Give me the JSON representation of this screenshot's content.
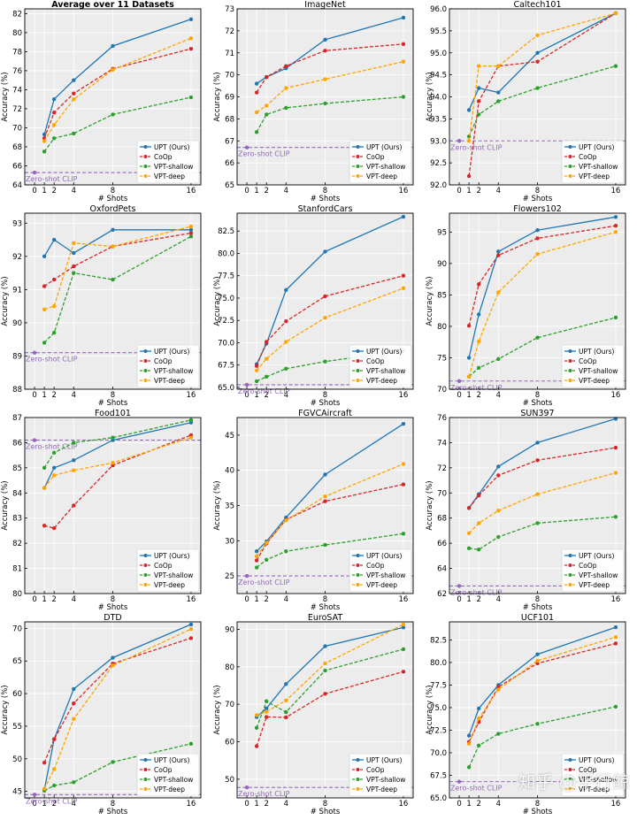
{
  "legend_labels": [
    "UPT (Ours)",
    "CoOp",
    "VPT-shallow",
    "VPT-deep"
  ],
  "series_colors": {
    "UPT (Ours)": "#1f77b4",
    "CoOp": "#d62728",
    "VPT-shallow": "#2ca02c",
    "VPT-deep": "#ffa500"
  },
  "zero_shot_color": "#9467bd",
  "watermark": "知乎 @平行鲸",
  "chart_data": [
    {
      "type": "line",
      "title": "Average over 11 Datasets",
      "xlabel": "# Shots",
      "ylabel": "Accuracy (%)",
      "x": [
        1,
        2,
        4,
        8,
        16
      ],
      "xticks": [
        0,
        1,
        2,
        4,
        8,
        16
      ],
      "ylim": [
        64,
        82.5
      ],
      "yticks": [
        "64",
        "66",
        "68",
        "70",
        "72",
        "74",
        "76",
        "78",
        "80",
        "82"
      ],
      "zero_shot": {
        "label": "Zero-shot CLIP",
        "value": 65.3
      },
      "series": [
        {
          "name": "UPT (Ours)",
          "values": [
            69.3,
            73.0,
            75.0,
            78.6,
            81.4
          ]
        },
        {
          "name": "CoOp",
          "values": [
            68.9,
            71.6,
            73.6,
            76.2,
            78.3
          ]
        },
        {
          "name": "VPT-shallow",
          "values": [
            67.5,
            68.9,
            69.4,
            71.4,
            73.2
          ]
        },
        {
          "name": "VPT-deep",
          "values": [
            68.6,
            70.3,
            73.0,
            76.1,
            79.4
          ]
        }
      ]
    },
    {
      "type": "line",
      "title": "ImageNet",
      "xlabel": "# Shots",
      "ylabel": "Accuracy (%)",
      "x": [
        1,
        2,
        4,
        8,
        16
      ],
      "xticks": [
        0,
        1,
        2,
        4,
        8,
        16
      ],
      "ylim": [
        65,
        73
      ],
      "yticks": [
        "65",
        "66",
        "67",
        "68",
        "69",
        "70",
        "71",
        "72",
        "73"
      ],
      "zero_shot": {
        "label": "Zero-shot CLIP",
        "value": 66.7
      },
      "series": [
        {
          "name": "UPT (Ours)",
          "values": [
            69.6,
            69.9,
            70.3,
            71.6,
            72.6
          ]
        },
        {
          "name": "CoOp",
          "values": [
            69.2,
            69.9,
            70.4,
            71.1,
            71.4
          ]
        },
        {
          "name": "VPT-shallow",
          "values": [
            67.4,
            68.2,
            68.5,
            68.7,
            69.0
          ]
        },
        {
          "name": "VPT-deep",
          "values": [
            68.3,
            68.6,
            69.4,
            69.8,
            70.6
          ]
        }
      ]
    },
    {
      "type": "line",
      "title": "Caltech101",
      "xlabel": "# Shots",
      "ylabel": "Accuracy (%)",
      "x": [
        1,
        2,
        4,
        8,
        16
      ],
      "xticks": [
        0,
        1,
        2,
        4,
        8,
        16
      ],
      "ylim": [
        92,
        96
      ],
      "yticks": [
        "92.0",
        "92.5",
        "93.0",
        "93.5",
        "94.0",
        "94.5",
        "95.0",
        "95.5",
        "96.0"
      ],
      "zero_shot": {
        "label": "Zero-shot CLIP",
        "value": 93.0
      },
      "series": [
        {
          "name": "UPT (Ours)",
          "values": [
            93.7,
            94.2,
            94.1,
            95.0,
            95.9
          ]
        },
        {
          "name": "CoOp",
          "values": [
            92.2,
            93.9,
            94.7,
            94.8,
            95.9
          ]
        },
        {
          "name": "VPT-shallow",
          "values": [
            93.1,
            93.6,
            93.9,
            94.2,
            94.7
          ]
        },
        {
          "name": "VPT-deep",
          "values": [
            93.0,
            94.7,
            94.7,
            95.4,
            95.9
          ]
        }
      ]
    },
    {
      "type": "line",
      "title": "OxfordPets",
      "xlabel": "# Shots",
      "ylabel": "Accuracy (%)",
      "x": [
        1,
        2,
        4,
        8,
        16
      ],
      "xticks": [
        0,
        1,
        2,
        4,
        8,
        16
      ],
      "ylim": [
        88,
        93.3
      ],
      "yticks": [
        "88",
        "89",
        "90",
        "91",
        "92",
        "93"
      ],
      "zero_shot": {
        "label": "Zero-shot CLIP",
        "value": 89.1
      },
      "series": [
        {
          "name": "UPT (Ours)",
          "values": [
            92.0,
            92.5,
            92.1,
            92.8,
            92.8
          ]
        },
        {
          "name": "CoOp",
          "values": [
            91.1,
            91.3,
            91.7,
            92.3,
            92.7
          ]
        },
        {
          "name": "VPT-shallow",
          "values": [
            89.4,
            89.7,
            91.5,
            91.3,
            92.6
          ]
        },
        {
          "name": "VPT-deep",
          "values": [
            90.4,
            90.5,
            92.4,
            92.3,
            92.9
          ]
        }
      ]
    },
    {
      "type": "line",
      "title": "StanfordCars",
      "xlabel": "# Shots",
      "ylabel": "Accuracy (%)",
      "x": [
        1,
        2,
        4,
        8,
        16
      ],
      "xticks": [
        0,
        1,
        2,
        4,
        8,
        16
      ],
      "ylim": [
        64.8,
        84.5
      ],
      "yticks": [
        "65.0",
        "67.5",
        "70.0",
        "72.5",
        "75.0",
        "77.5",
        "80.0",
        "82.5"
      ],
      "zero_shot": {
        "label": "Zero-shot CLIP",
        "value": 65.3
      },
      "series": [
        {
          "name": "UPT (Ours)",
          "values": [
            67.6,
            69.9,
            75.9,
            80.2,
            84.1
          ]
        },
        {
          "name": "CoOp",
          "values": [
            67.4,
            70.1,
            72.4,
            75.2,
            77.5
          ]
        },
        {
          "name": "VPT-shallow",
          "values": [
            65.7,
            66.2,
            67.1,
            67.9,
            69.1
          ]
        },
        {
          "name": "VPT-deep",
          "values": [
            66.9,
            68.2,
            70.1,
            72.8,
            76.1
          ]
        }
      ]
    },
    {
      "type": "line",
      "title": "Flowers102",
      "xlabel": "# Shots",
      "ylabel": "Accuracy (%)",
      "x": [
        1,
        2,
        4,
        8,
        16
      ],
      "xticks": [
        0,
        1,
        2,
        4,
        8,
        16
      ],
      "ylim": [
        70,
        98
      ],
      "yticks": [
        "70",
        "75",
        "80",
        "85",
        "90",
        "95"
      ],
      "zero_shot": {
        "label": "Zero-shot CLIP",
        "value": 71.3
      },
      "series": [
        {
          "name": "UPT (Ours)",
          "values": [
            75.0,
            81.9,
            91.9,
            95.3,
            97.4
          ]
        },
        {
          "name": "CoOp",
          "values": [
            80.1,
            86.7,
            91.3,
            94.0,
            96.0
          ]
        },
        {
          "name": "VPT-shallow",
          "values": [
            72.0,
            73.4,
            74.8,
            78.2,
            81.4
          ]
        },
        {
          "name": "VPT-deep",
          "values": [
            72.0,
            77.6,
            85.4,
            91.5,
            95.0
          ]
        }
      ]
    },
    {
      "type": "line",
      "title": "Food101",
      "xlabel": "# Shots",
      "ylabel": "Accuracy (%)",
      "x": [
        1,
        2,
        4,
        8,
        16
      ],
      "xticks": [
        0,
        1,
        2,
        4,
        8,
        16
      ],
      "ylim": [
        80,
        87
      ],
      "yticks": [
        "80",
        "81",
        "82",
        "83",
        "84",
        "85",
        "86",
        "87"
      ],
      "zero_shot": {
        "label": "Zero-shot CLIP",
        "value": 86.1
      },
      "series": [
        {
          "name": "UPT (Ours)",
          "values": [
            84.2,
            85.0,
            85.3,
            86.1,
            86.8
          ]
        },
        {
          "name": "CoOp",
          "values": [
            82.7,
            82.6,
            83.5,
            85.1,
            86.3
          ]
        },
        {
          "name": "VPT-shallow",
          "values": [
            85.0,
            85.6,
            86.0,
            86.2,
            86.9
          ]
        },
        {
          "name": "VPT-deep",
          "values": [
            84.2,
            84.7,
            84.9,
            85.2,
            86.2
          ]
        }
      ]
    },
    {
      "type": "line",
      "title": "FGVCAircraft",
      "xlabel": "# Shots",
      "ylabel": "Accuracy (%)",
      "x": [
        1,
        2,
        4,
        8,
        16
      ],
      "xticks": [
        0,
        1,
        2,
        4,
        8,
        16
      ],
      "ylim": [
        22.5,
        47.5
      ],
      "yticks": [
        "25",
        "30",
        "35",
        "40",
        "45"
      ],
      "zero_shot": {
        "label": "Zero-shot CLIP",
        "value": 25.0
      },
      "series": [
        {
          "name": "UPT (Ours)",
          "values": [
            28.5,
            29.9,
            33.3,
            39.4,
            46.6
          ]
        },
        {
          "name": "CoOp",
          "values": [
            27.2,
            29.6,
            33.0,
            35.6,
            38.0
          ]
        },
        {
          "name": "VPT-shallow",
          "values": [
            26.2,
            27.3,
            28.5,
            29.4,
            31.0
          ]
        },
        {
          "name": "VPT-deep",
          "values": [
            27.8,
            29.7,
            32.9,
            36.3,
            40.9
          ]
        }
      ]
    },
    {
      "type": "line",
      "title": "SUN397",
      "xlabel": "# Shots",
      "ylabel": "Accuracy (%)",
      "x": [
        1,
        2,
        4,
        8,
        16
      ],
      "xticks": [
        0,
        1,
        2,
        4,
        8,
        16
      ],
      "ylim": [
        62,
        76
      ],
      "yticks": [
        "62",
        "64",
        "66",
        "68",
        "70",
        "72",
        "74",
        "76"
      ],
      "zero_shot": {
        "label": "Zero-shot CLIP",
        "value": 62.6
      },
      "series": [
        {
          "name": "UPT (Ours)",
          "values": [
            68.8,
            69.9,
            72.1,
            74.0,
            75.9
          ]
        },
        {
          "name": "CoOp",
          "values": [
            68.8,
            69.8,
            71.4,
            72.6,
            73.6
          ]
        },
        {
          "name": "VPT-shallow",
          "values": [
            65.6,
            65.5,
            66.5,
            67.6,
            68.1
          ]
        },
        {
          "name": "VPT-deep",
          "values": [
            66.8,
            67.6,
            68.6,
            69.9,
            71.6
          ]
        }
      ]
    },
    {
      "type": "line",
      "title": "DTD",
      "xlabel": "# Shots",
      "ylabel": "Accuracy (%)",
      "x": [
        1,
        2,
        4,
        8,
        16
      ],
      "xticks": [
        0,
        1,
        2,
        4,
        8,
        16
      ],
      "ylim": [
        44,
        71
      ],
      "yticks": [
        "45",
        "50",
        "55",
        "60",
        "65",
        "70"
      ],
      "zero_shot": {
        "label": "Zero-shot CLIP",
        "value": 44.5
      },
      "series": [
        {
          "name": "UPT (Ours)",
          "values": [
            45.2,
            53.0,
            60.7,
            65.5,
            70.6
          ]
        },
        {
          "name": "CoOp",
          "values": [
            49.4,
            53.0,
            58.5,
            64.6,
            68.5
          ]
        },
        {
          "name": "VPT-shallow",
          "values": [
            45.1,
            45.9,
            46.4,
            49.5,
            52.3
          ]
        },
        {
          "name": "VPT-deep",
          "values": [
            45.4,
            48.4,
            56.1,
            64.3,
            69.9
          ]
        }
      ]
    },
    {
      "type": "line",
      "title": "EuroSAT",
      "xlabel": "# Shots",
      "ylabel": "Accuracy (%)",
      "x": [
        1,
        2,
        4,
        8,
        16
      ],
      "xticks": [
        0,
        1,
        2,
        4,
        8,
        16
      ],
      "ylim": [
        45,
        92
      ],
      "yticks": [
        "50",
        "60",
        "70",
        "80",
        "90"
      ],
      "zero_shot": {
        "label": "Zero-shot CLIP",
        "value": 47.8
      },
      "series": [
        {
          "name": "UPT (Ours)",
          "values": [
            66.6,
            68.9,
            75.4,
            85.5,
            90.5
          ]
        },
        {
          "name": "CoOp",
          "values": [
            58.8,
            66.6,
            66.5,
            72.8,
            78.7
          ]
        },
        {
          "name": "VPT-shallow",
          "values": [
            63.7,
            70.8,
            67.9,
            79.0,
            84.7
          ]
        },
        {
          "name": "VPT-deep",
          "values": [
            67.1,
            68.0,
            71.0,
            80.9,
            91.3
          ]
        }
      ]
    },
    {
      "type": "line",
      "title": "UCF101",
      "xlabel": "# Shots",
      "ylabel": "Accuracy (%)",
      "x": [
        1,
        2,
        4,
        8,
        16
      ],
      "xticks": [
        0,
        1,
        2,
        4,
        8,
        16
      ],
      "ylim": [
        65,
        84.5
      ],
      "yticks": [
        "65.0",
        "67.5",
        "70.0",
        "72.5",
        "75.0",
        "77.5",
        "80.0",
        "82.5"
      ],
      "zero_shot": {
        "label": "Zero-shot CLIP",
        "value": 66.8
      },
      "series": [
        {
          "name": "UPT (Ours)",
          "values": [
            71.9,
            74.9,
            77.5,
            80.9,
            83.9
          ]
        },
        {
          "name": "CoOp",
          "values": [
            71.2,
            73.4,
            77.3,
            79.9,
            82.1
          ]
        },
        {
          "name": "VPT-shallow",
          "values": [
            68.4,
            70.8,
            72.1,
            73.2,
            75.1
          ]
        },
        {
          "name": "VPT-deep",
          "values": [
            71.0,
            73.8,
            77.0,
            80.2,
            82.8
          ]
        }
      ]
    }
  ]
}
